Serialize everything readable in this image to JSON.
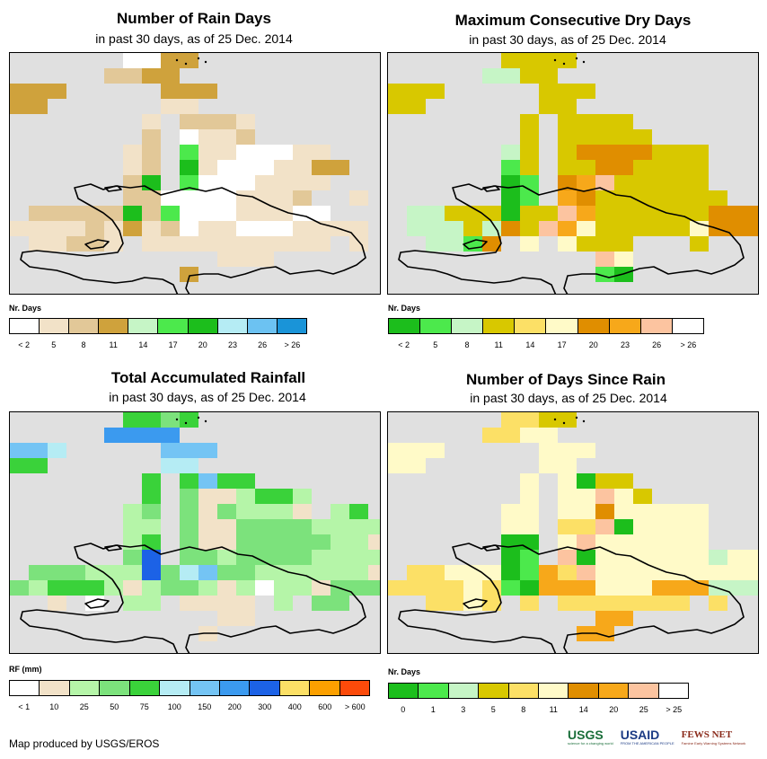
{
  "panels": [
    {
      "title": "Number of Rain Days",
      "subtitle": "in past 30 days, as of 25 Dec. 2014",
      "legend_title": "Nr. Days",
      "legend_colors": [
        "#ffffff",
        "#f2e2c8",
        "#e2c898",
        "#cfa23c",
        "#c6f5c6",
        "#4ce94c",
        "#1cbe1c",
        "#b5ecf4",
        "#6cc2f2",
        "#1a94d8"
      ],
      "legend_labels": [
        "< 2",
        "5",
        "8",
        "11",
        "14",
        "17",
        "20",
        "23",
        "26",
        "> 26"
      ],
      "palette": [
        "#ffffff",
        "#f2e2c8",
        "#e2c898",
        "#cfa23c",
        "#c6f5c6",
        "#4ce94c",
        "#1cbe1c",
        "#b5ecf4",
        "#6cc2f2",
        "#1a94d8"
      ],
      "grid": [
        "......0033..........",
        ".....2233...........",
        "333.....333.........",
        "33......11..........",
        ".......1.2221.......",
        ".......2.0112.......",
        "......12.51100011....",
        "......12.610001133..",
        "......26.50001111...",
        "......2200001112..1.",
        ".2222262500011100...",
        "1111213120110001111..",
        ".11221.1111111111.1.",
        "...........111......",
        ".........3..........",
        "...................."
      ]
    },
    {
      "title": "Maximum Consecutive Dry Days",
      "subtitle": "in past 30 days, as of 25 Dec. 2014",
      "legend_title": "Nr. Days",
      "legend_colors": [
        "#1cbe1c",
        "#4ce94c",
        "#c6f5c6",
        "#d8c800",
        "#fce066",
        "#fffac8",
        "#e08e00",
        "#f7a81a",
        "#fcc4a0",
        "#ffffff"
      ],
      "legend_labels": [
        "< 2",
        "5",
        "8",
        "11",
        "14",
        "17",
        "20",
        "23",
        "26",
        "> 26"
      ],
      "palette": [
        "#1cbe1c",
        "#4ce94c",
        "#c6f5c6",
        "#d8c800",
        "#fce066",
        "#fffac8",
        "#e08e00",
        "#f7a81a",
        "#fcc4a0",
        "#ffffff"
      ],
      "grid": [
        "......3333..........",
        ".....2233...........",
        "333.....333.........",
        "33......33..........",
        ".......3.3333.......",
        ".......3.33333......",
        "......23.36666333...",
        "......13.33663333...",
        "......01.67833333...",
        "......01.763333333..",
        ".2233303387333333666",
        ".2223263875333335666",
        "..2216.5.5333...3..",
        "...........85.......",
        "...........10.......",
        "...................."
      ]
    },
    {
      "title": "Total Accumulated Rainfall",
      "subtitle": "in past 30 days, as of 25 Dec. 2014",
      "legend_title": "RF (mm)",
      "legend_colors": [
        "#ffffff",
        "#f2e2c8",
        "#b5f5a8",
        "#7ce27c",
        "#3ad23a",
        "#b5ecf4",
        "#74c4f4",
        "#3b9aef",
        "#1c62e6",
        "#fce066",
        "#fca000",
        "#fc4a0a"
      ],
      "legend_labels": [
        "< 1",
        "10",
        "25",
        "50",
        "75",
        "100",
        "150",
        "200",
        "300",
        "400",
        "600",
        "> 600"
      ],
      "palette": [
        "#ffffff",
        "#f2e2c8",
        "#b5f5a8",
        "#7ce27c",
        "#3ad23a",
        "#b5ecf4",
        "#74c4f4",
        "#3b9aef",
        "#1c62e6",
        "#fce066",
        "#fca000",
        "#fc4a0a"
      ],
      "grid": [
        "......4434..........",
        ".....7777...........",
        "665.....666.........",
        "44......55..........",
        ".......4.4644.......",
        ".......4.3112442....",
        "......23.3132221.24..",
        "......22.31133332222.",
        "......24.31133333221.",
        "......38.3323333222211",
        ".333222835633222222113",
        "32444212332120221333.",
        "..1.0.22.1111.2.33..",
        "...........11.......",
        "..........1.........",
        "...................."
      ]
    },
    {
      "title": "Number of Days Since Rain",
      "subtitle": "in past 30 days, as of 25 Dec. 2014",
      "legend_title": "Nr. Days",
      "legend_colors": [
        "#1cbe1c",
        "#4ce94c",
        "#c6f5c6",
        "#d8c800",
        "#fce066",
        "#fffac8",
        "#e08e00",
        "#f7a81a",
        "#fcc4a0",
        "#ffffff"
      ],
      "legend_labels": [
        "0",
        "1",
        "3",
        "5",
        "8",
        "11",
        "14",
        "20",
        "25",
        "> 25"
      ],
      "palette": [
        "#1cbe1c",
        "#4ce94c",
        "#c6f5c6",
        "#d8c800",
        "#fce066",
        "#fffac8",
        "#e08e00",
        "#f7a81a",
        "#fcc4a0",
        "#ffffff"
      ],
      "grid": [
        "......4433..........",
        ".....4455...........",
        "555.....555.........",
        "55......55..........",
        ".......5.5033.......",
        ".......5.55853......",
        "......55.55655555...",
        "......55.44805555...",
        "......00.58555555...",
        "......01.80555555255.",
        ".4455501748555555555.",
        "44445410777555777222.",
        "..4454.4.4444444.4..",
        "...........77.......",
        "..........77........",
        "...................."
      ]
    }
  ],
  "credit": "Map produced by USGS/EROS",
  "logos": {
    "usgs": "USGS",
    "usgs_tag": "science for a changing world",
    "usaid": "USAID",
    "usaid_tag": "FROM THE AMERICAN PEOPLE",
    "fews": "FEWS NET",
    "fews_tag": "Famine Early Warning Systems Network"
  }
}
